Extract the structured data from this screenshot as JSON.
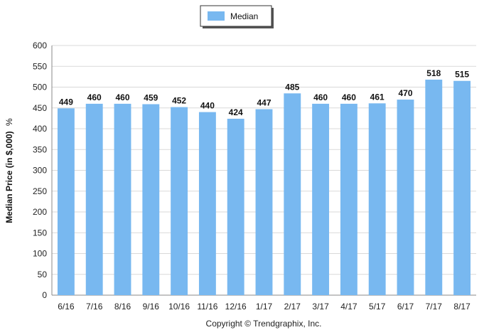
{
  "chart_data": {
    "type": "bar",
    "categories": [
      "6/16",
      "7/16",
      "8/16",
      "9/16",
      "10/16",
      "11/16",
      "12/16",
      "1/17",
      "2/17",
      "3/17",
      "4/17",
      "5/17",
      "6/17",
      "7/17",
      "8/17"
    ],
    "series": [
      {
        "name": "Median",
        "values": [
          449,
          460,
          460,
          459,
          452,
          440,
          424,
          447,
          485,
          460,
          460,
          461,
          470,
          518,
          515
        ]
      }
    ],
    "data_labels": [
      "449",
      "460",
      "460",
      "459",
      "452",
      "440",
      "424",
      "447",
      "485",
      "460",
      "460",
      "461",
      "470",
      "518",
      "515"
    ],
    "title": "",
    "xlabel": "",
    "ylabel": "Median Price (in $,000)",
    "ylabel_suffix": "%",
    "ylim": [
      0,
      600
    ],
    "yticks": [
      0,
      50,
      100,
      150,
      200,
      250,
      300,
      350,
      400,
      450,
      500,
      550,
      600
    ],
    "grid": "horizontal",
    "legend": "top-center",
    "bar_color": "#78b8f0"
  },
  "footer": {
    "copyright": "Copyright © Trendgraphix, Inc."
  }
}
